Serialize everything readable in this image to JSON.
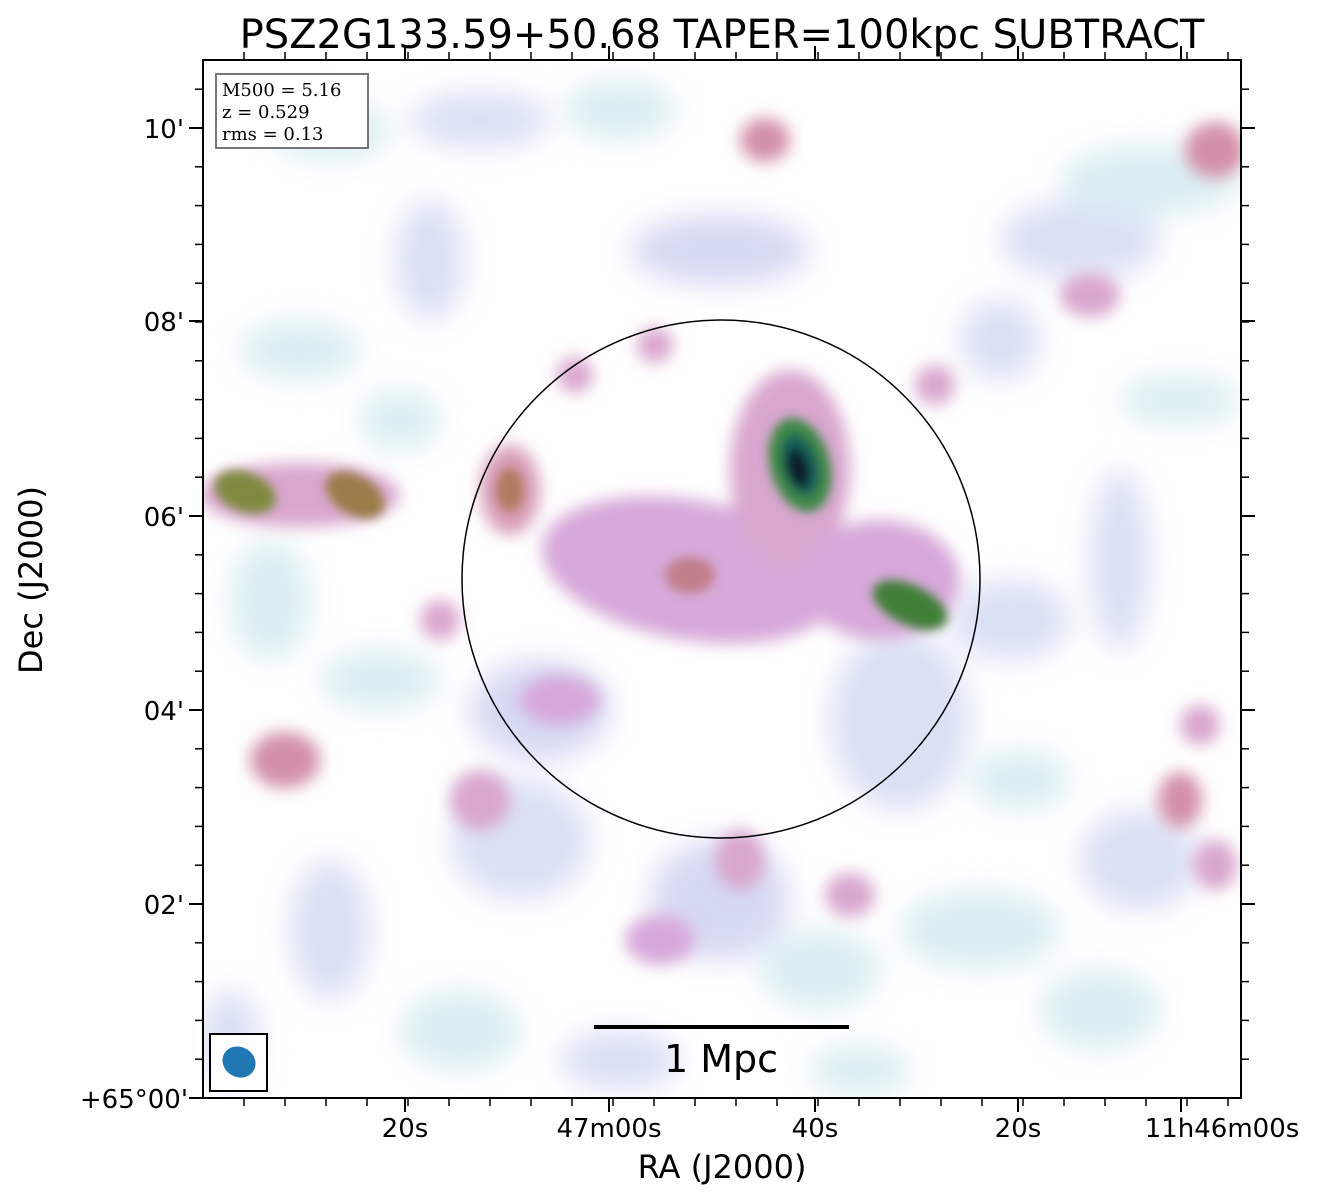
{
  "title": "PSZ2G133.59+50.68 TAPER=100kpc SUBTRACT",
  "xlabel": "RA (J2000)",
  "ylabel": "Dec (J2000)",
  "x_ticks": [
    "20s",
    "47m00s",
    "40s",
    "20s",
    "11h46m00s"
  ],
  "y_ticks": [
    "10'",
    "08'",
    "06'",
    "04'",
    "02'",
    "+65°00'"
  ],
  "info": {
    "m500": "M500 = 5.16",
    "z": "z = 0.529",
    "rms": "rms = 0.13"
  },
  "scalebar_label": "1 Mpc",
  "colors": {
    "beam": "#1f77b4",
    "frame": "#000000"
  },
  "colormap": "cubehelix_r"
}
